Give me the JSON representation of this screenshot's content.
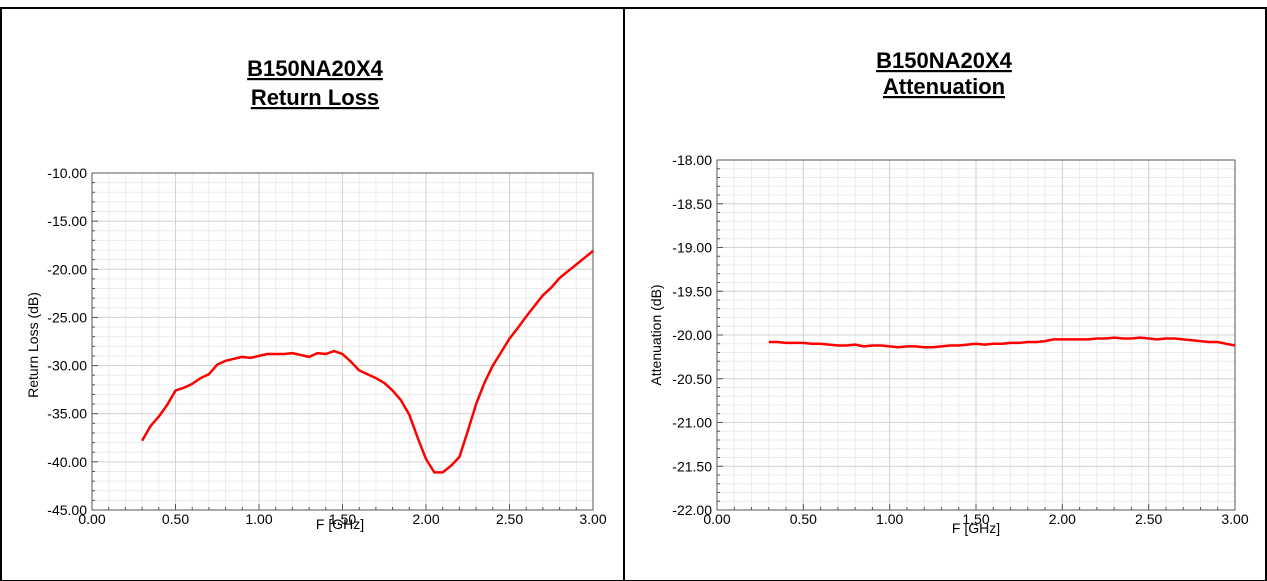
{
  "colors": {
    "series": "#ff0000",
    "grid": "#d3d3d3",
    "border": "#000000"
  },
  "chart_data": [
    {
      "type": "line",
      "title": "B150NA20X4",
      "subtitle": "Return Loss",
      "xlabel": "F [GHz]",
      "ylabel": "Return Loss (dB)",
      "xlim": [
        0,
        3
      ],
      "ylim": [
        -45,
        -10
      ],
      "xticks": [
        "0.00",
        "0.50",
        "1.00",
        "1.50",
        "2.00",
        "2.50",
        "3.00"
      ],
      "yticks": [
        "-10.00",
        "-15.00",
        "-20.00",
        "-25.00",
        "-30.00",
        "-35.00",
        "-40.00",
        "-45.00"
      ],
      "grid": true,
      "series": [
        {
          "x": [
            0.3,
            0.35,
            0.4,
            0.45,
            0.5,
            0.55,
            0.6,
            0.65,
            0.7,
            0.75,
            0.8,
            0.85,
            0.9,
            0.95,
            1.0,
            1.05,
            1.1,
            1.15,
            1.2,
            1.25,
            1.3,
            1.35,
            1.4,
            1.45,
            1.5,
            1.55,
            1.6,
            1.65,
            1.7,
            1.75,
            1.8,
            1.85,
            1.9,
            1.95,
            2.0,
            2.05,
            2.1,
            2.15,
            2.2,
            2.25,
            2.3,
            2.35,
            2.4,
            2.45,
            2.5,
            2.55,
            2.6,
            2.65,
            2.7,
            2.75,
            2.8,
            2.85,
            2.9,
            2.95,
            3.0
          ],
          "y": [
            -37.8,
            -36.3,
            -35.3,
            -34.1,
            -32.6,
            -32.3,
            -31.9,
            -31.3,
            -30.9,
            -29.9,
            -29.5,
            -29.3,
            -29.1,
            -29.2,
            -29.0,
            -28.8,
            -28.8,
            -28.8,
            -28.7,
            -28.9,
            -29.1,
            -28.7,
            -28.8,
            -28.5,
            -28.8,
            -29.6,
            -30.5,
            -30.9,
            -31.3,
            -31.8,
            -32.6,
            -33.6,
            -35.1,
            -37.5,
            -39.7,
            -41.1,
            -41.1,
            -40.4,
            -39.5,
            -36.8,
            -34.0,
            -31.8,
            -30.0,
            -28.6,
            -27.2,
            -26.1,
            -24.9,
            -23.8,
            -22.7,
            -21.9,
            -20.9,
            -20.2,
            -19.5,
            -18.8,
            -18.1
          ]
        }
      ]
    },
    {
      "type": "line",
      "title": "B150NA20X4",
      "subtitle": "Attenuation",
      "xlabel": "F [GHz]",
      "ylabel": "Attenuation (dB)",
      "xlim": [
        0,
        3
      ],
      "ylim": [
        -22,
        -18
      ],
      "xticks": [
        "0.00",
        "0.50",
        "1.00",
        "1.50",
        "2.00",
        "2.50",
        "3.00"
      ],
      "yticks": [
        "-18.00",
        "-18.50",
        "-19.00",
        "-19.50",
        "-20.00",
        "-20.50",
        "-21.00",
        "-21.50",
        "-22.00"
      ],
      "grid": true,
      "series": [
        {
          "x": [
            0.3,
            0.35,
            0.4,
            0.45,
            0.5,
            0.55,
            0.6,
            0.65,
            0.7,
            0.75,
            0.8,
            0.85,
            0.9,
            0.95,
            1.0,
            1.05,
            1.1,
            1.15,
            1.2,
            1.25,
            1.3,
            1.35,
            1.4,
            1.45,
            1.5,
            1.55,
            1.6,
            1.65,
            1.7,
            1.75,
            1.8,
            1.85,
            1.9,
            1.95,
            2.0,
            2.05,
            2.1,
            2.15,
            2.2,
            2.25,
            2.3,
            2.35,
            2.4,
            2.45,
            2.5,
            2.55,
            2.6,
            2.65,
            2.7,
            2.75,
            2.8,
            2.85,
            2.9,
            2.95,
            3.0
          ],
          "y": [
            -20.08,
            -20.08,
            -20.09,
            -20.09,
            -20.09,
            -20.1,
            -20.1,
            -20.11,
            -20.12,
            -20.12,
            -20.11,
            -20.13,
            -20.12,
            -20.12,
            -20.13,
            -20.14,
            -20.13,
            -20.13,
            -20.14,
            -20.14,
            -20.13,
            -20.12,
            -20.12,
            -20.11,
            -20.1,
            -20.11,
            -20.1,
            -20.1,
            -20.09,
            -20.09,
            -20.08,
            -20.08,
            -20.07,
            -20.05,
            -20.05,
            -20.05,
            -20.05,
            -20.05,
            -20.04,
            -20.04,
            -20.03,
            -20.04,
            -20.04,
            -20.03,
            -20.04,
            -20.05,
            -20.04,
            -20.04,
            -20.05,
            -20.06,
            -20.07,
            -20.08,
            -20.08,
            -20.1,
            -20.12
          ]
        }
      ]
    }
  ]
}
